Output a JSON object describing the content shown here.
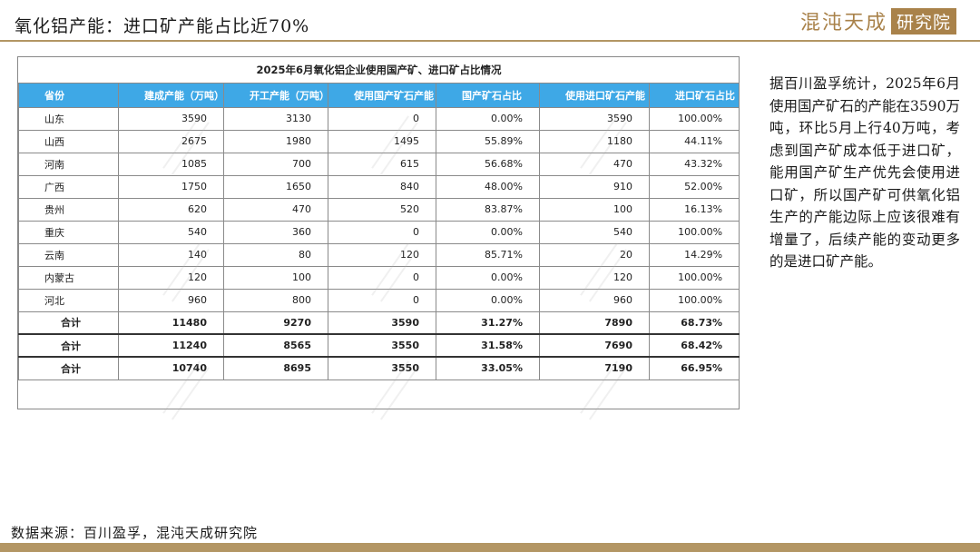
{
  "header": {
    "title": "氧化铝产能：进口矿产能占比近70%",
    "logo_left": "混沌天成",
    "logo_right": "研究院"
  },
  "table": {
    "caption": "2025年6月氧化铝企业使用国产矿、进口矿占比情况",
    "columns": [
      "省份",
      "建成产能（万吨）",
      "开工产能（万吨）",
      "使用国产矿石产能（万吨）",
      "国产矿石占比",
      "使用进口矿石产能（万吨）",
      "进口矿石占比"
    ],
    "rows": [
      [
        "山东",
        "3590",
        "3130",
        "0",
        "0.00%",
        "3590",
        "100.00%"
      ],
      [
        "山西",
        "2675",
        "1980",
        "1495",
        "55.89%",
        "1180",
        "44.11%"
      ],
      [
        "河南",
        "1085",
        "700",
        "615",
        "56.68%",
        "470",
        "43.32%"
      ],
      [
        "广西",
        "1750",
        "1650",
        "840",
        "48.00%",
        "910",
        "52.00%"
      ],
      [
        "贵州",
        "620",
        "470",
        "520",
        "83.87%",
        "100",
        "16.13%"
      ],
      [
        "重庆",
        "540",
        "360",
        "0",
        "0.00%",
        "540",
        "100.00%"
      ],
      [
        "云南",
        "140",
        "80",
        "120",
        "85.71%",
        "20",
        "14.29%"
      ],
      [
        "内蒙古",
        "120",
        "100",
        "0",
        "0.00%",
        "120",
        "100.00%"
      ],
      [
        "河北",
        "960",
        "800",
        "0",
        "0.00%",
        "960",
        "100.00%"
      ]
    ],
    "totals": [
      [
        "合计",
        "11480",
        "9270",
        "3590",
        "31.27%",
        "7890",
        "68.73%"
      ],
      [
        "合计",
        "11240",
        "8565",
        "3550",
        "31.58%",
        "7690",
        "68.42%"
      ],
      [
        "合计",
        "10740",
        "8695",
        "3550",
        "33.05%",
        "7190",
        "66.95%"
      ]
    ]
  },
  "side_text": "据百川盈孚统计，2025年6月使用国产矿石的产能在3590万吨，环比5月上行40万吨，考虑到国产矿成本低于进口矿，能用国产矿生产优先会使用进口矿，所以国产矿可供氧化铝生产的产能边际上应该很难有增量了，后续产能的变动更多的是进口矿产能。",
  "source": "数据来源：百川盈孚，混沌天成研究院",
  "colors": {
    "accent": "#b39664",
    "table_header": "#3ea8e6"
  }
}
